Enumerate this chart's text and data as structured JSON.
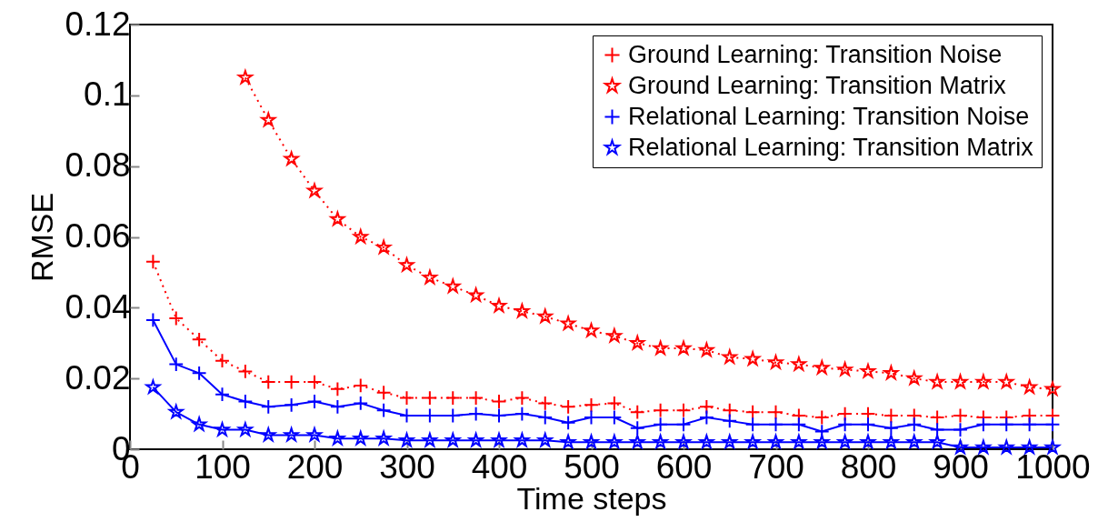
{
  "chart_data": {
    "type": "line",
    "xlabel": "Time steps",
    "ylabel": "RMSE",
    "x": [
      25,
      50,
      75,
      100,
      125,
      150,
      175,
      200,
      225,
      250,
      275,
      300,
      325,
      350,
      375,
      400,
      425,
      450,
      475,
      500,
      525,
      550,
      575,
      600,
      625,
      650,
      675,
      700,
      725,
      750,
      775,
      800,
      825,
      850,
      875,
      900,
      925,
      950,
      975,
      1000
    ],
    "series": [
      {
        "name": "Ground Learning: Transition Noise",
        "color": "#ff0000",
        "marker": "cross",
        "line_style": "dotted",
        "values": [
          0.053,
          0.037,
          0.031,
          0.025,
          0.022,
          0.019,
          0.019,
          0.019,
          0.017,
          0.018,
          0.016,
          0.0145,
          0.0145,
          0.0145,
          0.0145,
          0.0135,
          0.0145,
          0.013,
          0.012,
          0.0125,
          0.013,
          0.0105,
          0.011,
          0.011,
          0.012,
          0.011,
          0.0105,
          0.0105,
          0.0095,
          0.009,
          0.01,
          0.01,
          0.0095,
          0.0095,
          0.009,
          0.0095,
          0.009,
          0.009,
          0.0095,
          0.0095
        ]
      },
      {
        "name": "Ground Learning: Transition Matrix",
        "color": "#ff0000",
        "marker": "star",
        "line_style": "dotted",
        "values": [
          null,
          null,
          null,
          null,
          0.105,
          0.093,
          0.082,
          0.073,
          0.065,
          0.06,
          0.057,
          0.052,
          0.0485,
          0.046,
          0.0435,
          0.0405,
          0.039,
          0.0375,
          0.0355,
          0.0335,
          0.032,
          0.03,
          0.0285,
          0.0285,
          0.028,
          0.026,
          0.0255,
          0.0245,
          0.024,
          0.023,
          0.0225,
          0.022,
          0.0215,
          0.02,
          0.019,
          0.019,
          0.019,
          0.019,
          0.0175,
          0.017
        ]
      },
      {
        "name": "Relational Learning: Transition Noise",
        "color": "#0000ff",
        "marker": "cross",
        "line_style": "solid",
        "values": [
          0.0365,
          0.024,
          0.0215,
          0.0155,
          0.0135,
          0.012,
          0.0125,
          0.0135,
          0.012,
          0.013,
          0.011,
          0.0095,
          0.0095,
          0.0095,
          0.01,
          0.0095,
          0.01,
          0.009,
          0.0075,
          0.009,
          0.009,
          0.006,
          0.007,
          0.007,
          0.009,
          0.008,
          0.007,
          0.007,
          0.007,
          0.005,
          0.007,
          0.007,
          0.006,
          0.007,
          0.0055,
          0.0055,
          0.007,
          0.007,
          0.007,
          0.007
        ]
      },
      {
        "name": "Relational Learning: Transition Matrix",
        "color": "#0000ff",
        "marker": "star",
        "line_style": "solid",
        "values": [
          0.0175,
          0.0105,
          0.007,
          0.0055,
          0.0055,
          0.004,
          0.004,
          0.004,
          0.003,
          0.003,
          0.003,
          0.0025,
          0.0025,
          0.0025,
          0.0025,
          0.0025,
          0.0025,
          0.0025,
          0.002,
          0.002,
          0.002,
          0.002,
          0.002,
          0.002,
          0.002,
          0.002,
          0.002,
          0.002,
          0.002,
          0.002,
          0.002,
          0.002,
          0.002,
          0.002,
          0.002,
          0.0005,
          0.0005,
          0.0005,
          0.0005,
          0.0005
        ]
      }
    ],
    "xlim": [
      0,
      1000
    ],
    "xticks": [
      0,
      100,
      200,
      300,
      400,
      500,
      600,
      700,
      800,
      900,
      1000
    ],
    "ylim": [
      0,
      0.12
    ],
    "yticks": [
      0,
      0.02,
      0.04,
      0.06,
      0.08,
      0.1,
      0.12
    ],
    "grid": false,
    "legend": "top right"
  }
}
